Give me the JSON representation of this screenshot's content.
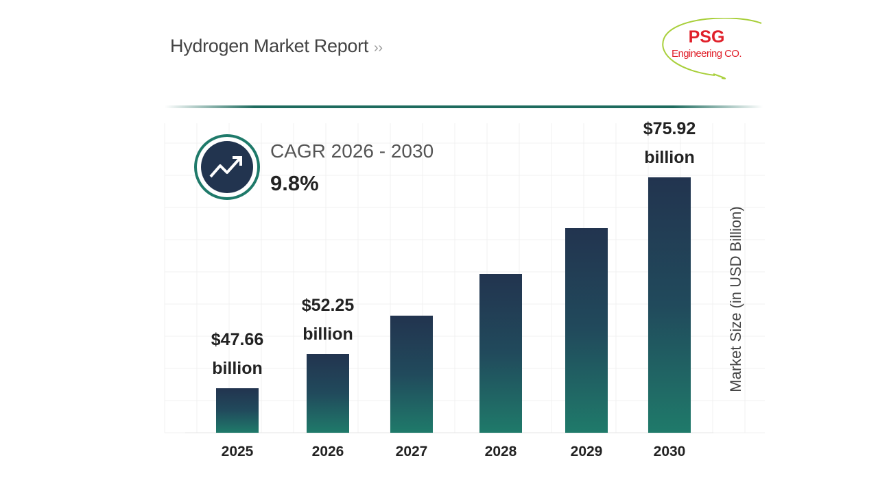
{
  "header": {
    "title": "Hydrogen Market Report",
    "title_arrow": "››"
  },
  "logo": {
    "line1": "PSG",
    "line2": "Engineering CO.",
    "color": "#e0202a",
    "swoosh_color": "#a8cf3a"
  },
  "cagr": {
    "label": "CAGR 2026 - 2030",
    "value": "9.8%",
    "icon": "trending-up-icon"
  },
  "colors": {
    "bar_top": "#22344f",
    "bar_bottom": "#1f7a6a",
    "accent": "#1e6b5e"
  },
  "chart_data": {
    "type": "bar",
    "categories": [
      "2025",
      "2026",
      "2027",
      "2028",
      "2029",
      "2030"
    ],
    "values": [
      47.66,
      52.25,
      57.37,
      62.99,
      69.16,
      75.92
    ],
    "data_labels": [
      "$47.66 billion",
      "$52.25 billion",
      "",
      "",
      "",
      "$75.92 billion"
    ],
    "ylabel": "Market Size (in USD Billion)",
    "xlabel": "",
    "grid": true,
    "y_axis_ticks_shown": false
  }
}
